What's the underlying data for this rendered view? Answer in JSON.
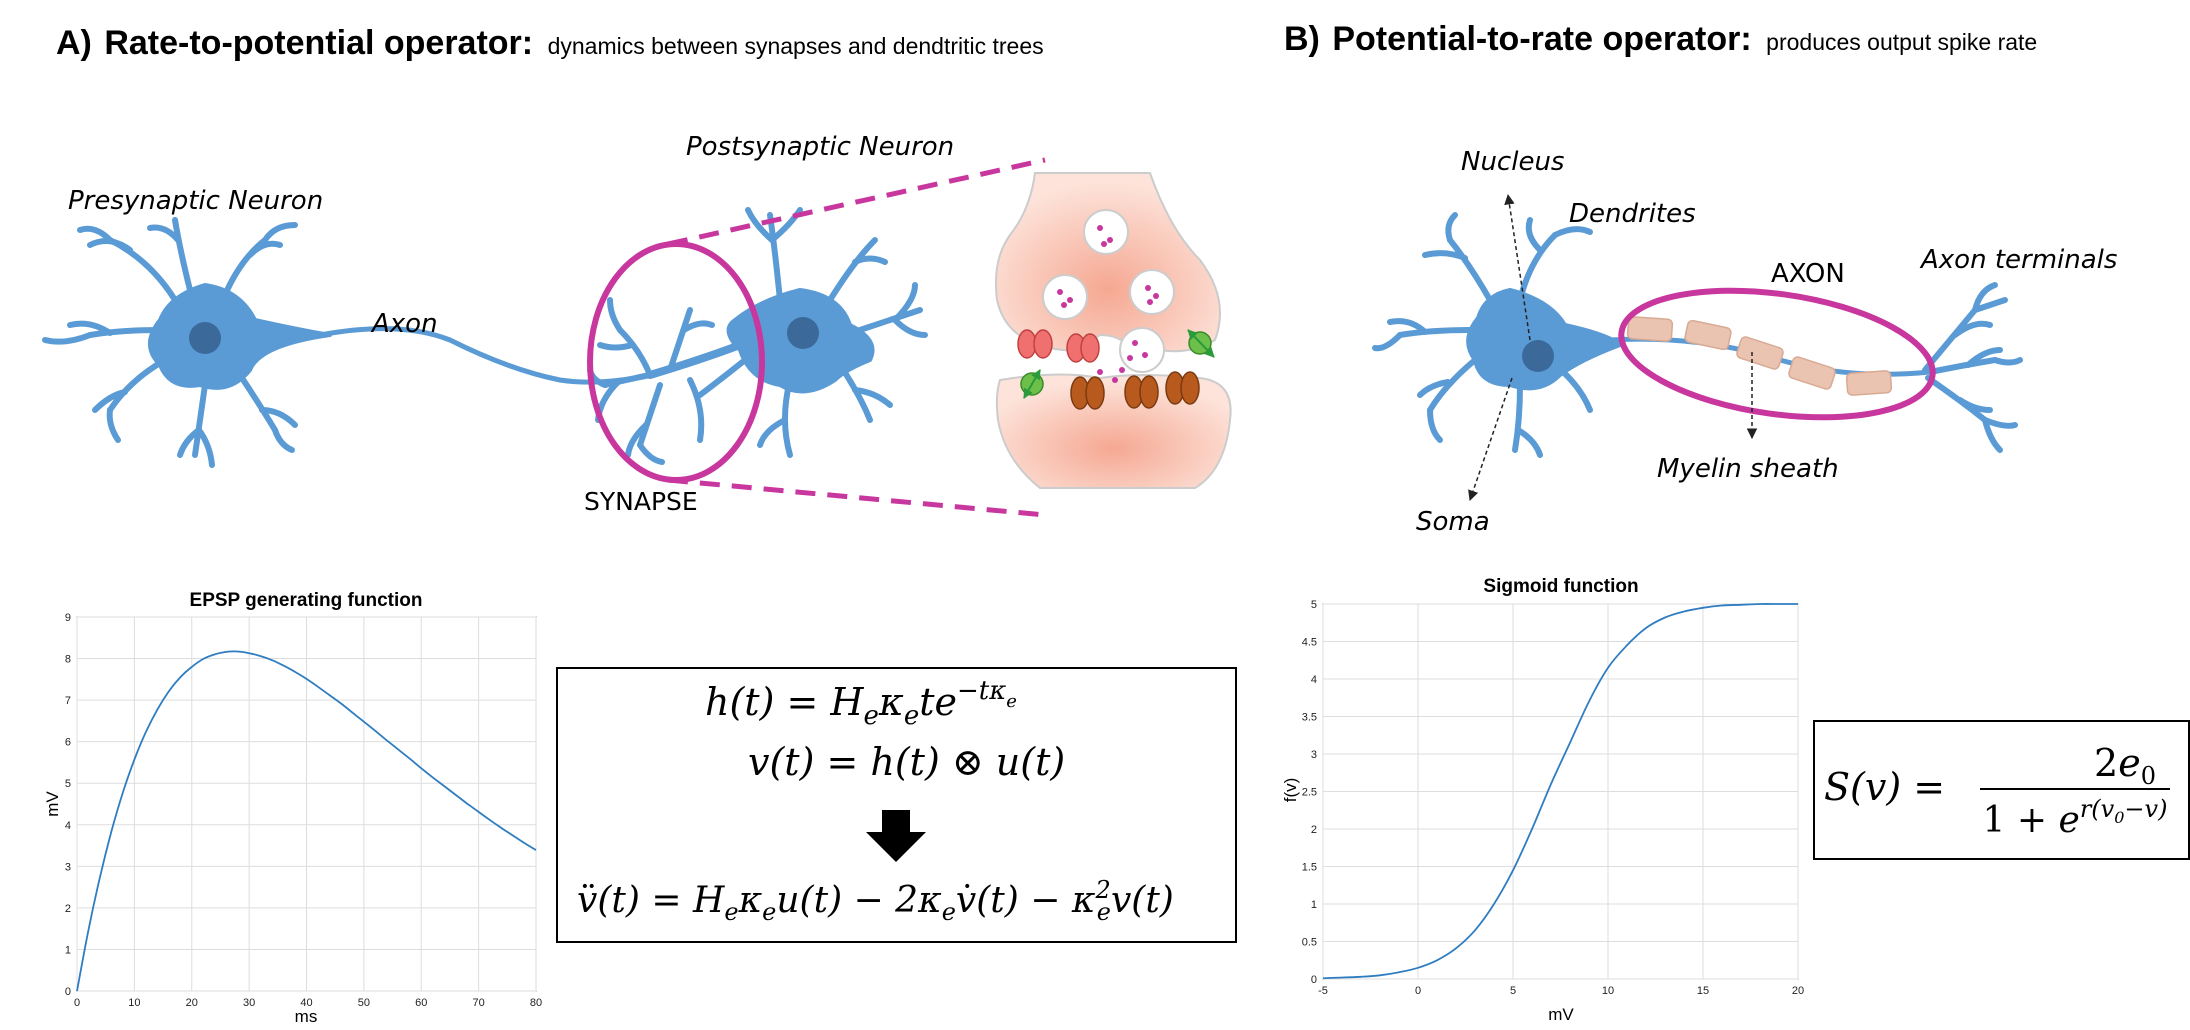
{
  "panel_a": {
    "letter": "A)",
    "title": "Rate-to-potential operator:",
    "subtitle": "dynamics between synapses and dendtritic trees",
    "labels": {
      "presynaptic": "Presynaptic Neuron",
      "postsynaptic": "Postsynaptic Neuron",
      "axon": "Axon",
      "synapse": "SYNAPSE"
    }
  },
  "panel_b": {
    "letter": "B)",
    "title": "Potential-to-rate operator:",
    "subtitle": "produces output spike rate",
    "labels": {
      "nucleus": "Nucleus",
      "dendrites": "Dendrites",
      "axon": "AXON",
      "axon_terminals": "Axon terminals",
      "myelin": "Myelin sheath",
      "soma": "Soma"
    }
  },
  "equations_a": {
    "h_lhs": "h(t) = H",
    "v_line": "v(t) = h(t) ⊗ u(t)"
  },
  "colors": {
    "neuron": "#5b9bd5",
    "nucleus": "#3b6a9a",
    "magenta": "#c8379e",
    "myelin": "#eac4b0",
    "synapse_bg": "#f9d4c8",
    "red_channel": "#f07070",
    "brown_channel": "#b85a1e",
    "green_channel": "#6cc04a",
    "curve": "#2f7dc1"
  },
  "chart_data": [
    {
      "type": "line",
      "title": "EPSP generating function",
      "xlabel": "ms",
      "ylabel": "mV",
      "xlim": [
        0,
        80
      ],
      "ylim": [
        0,
        9
      ],
      "xticks": [
        "0",
        "10",
        "20",
        "30",
        "40",
        "50",
        "60",
        "70",
        "80"
      ],
      "yticks": [
        "0",
        "1",
        "2",
        "3",
        "4",
        "5",
        "6",
        "7",
        "8",
        "9"
      ],
      "grid": true,
      "x": [
        0,
        2,
        4,
        6,
        8,
        10,
        12,
        14,
        16,
        18,
        20,
        22,
        24,
        26,
        28,
        30,
        32,
        34,
        36,
        38,
        40,
        42,
        44,
        46,
        48,
        50,
        52,
        54,
        56,
        58,
        60,
        62,
        64,
        66,
        68,
        70,
        72,
        74,
        76,
        78,
        80
      ],
      "y": [
        0,
        1.47,
        2.74,
        3.84,
        4.78,
        5.57,
        6.23,
        6.77,
        7.21,
        7.55,
        7.8,
        7.99,
        8.1,
        8.16,
        8.17,
        8.13,
        8.06,
        7.96,
        7.83,
        7.68,
        7.51,
        7.32,
        7.12,
        6.92,
        6.7,
        6.48,
        6.26,
        6.03,
        5.81,
        5.59,
        5.36,
        5.14,
        4.93,
        4.72,
        4.51,
        4.31,
        4.11,
        3.92,
        3.74,
        3.56,
        3.39
      ]
    },
    {
      "type": "line",
      "title": "Sigmoid function",
      "xlabel": "mV",
      "ylabel": "f(v)",
      "xlim": [
        -5,
        20
      ],
      "ylim": [
        0,
        5
      ],
      "xticks": [
        "-5",
        "0",
        "5",
        "10",
        "15",
        "20"
      ],
      "yticks": [
        "0",
        "0.5",
        "1",
        "1.5",
        "2",
        "2.5",
        "3",
        "3.5",
        "4",
        "4.5",
        "5"
      ],
      "grid": true,
      "x": [
        -5,
        -4,
        -3,
        -2,
        -1,
        0,
        1,
        2,
        3,
        4,
        5,
        6,
        7,
        8,
        9,
        10,
        11,
        12,
        13,
        14,
        15,
        16,
        17,
        18,
        19,
        20
      ],
      "y": [
        0.01,
        0.02,
        0.03,
        0.05,
        0.09,
        0.15,
        0.25,
        0.41,
        0.65,
        1.0,
        1.45,
        2.0,
        2.6,
        3.15,
        3.7,
        4.15,
        4.45,
        4.68,
        4.82,
        4.9,
        4.95,
        4.98,
        4.99,
        5.0,
        5.0,
        5.0
      ]
    }
  ]
}
